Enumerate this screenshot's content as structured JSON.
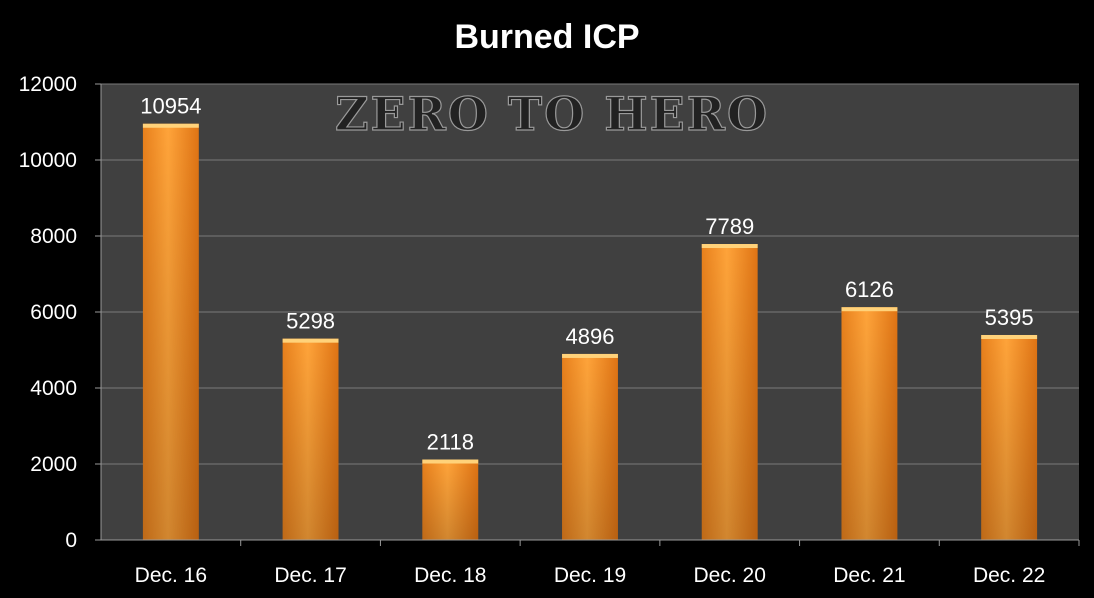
{
  "chart_data": {
    "type": "bar",
    "title": "Burned ICP",
    "annotation": "ZERO TO HERO",
    "categories": [
      "Dec. 16",
      "Dec. 17",
      "Dec. 18",
      "Dec. 19",
      "Dec. 20",
      "Dec. 21",
      "Dec. 22"
    ],
    "values": [
      10954,
      5298,
      2118,
      4896,
      7789,
      6126,
      5395
    ],
    "data_labels": [
      "10954",
      "5298",
      "2118",
      "4896",
      "7789",
      "6126",
      "5395"
    ],
    "y_ticks": [
      "0",
      "2000",
      "4000",
      "6000",
      "8000",
      "10000",
      "12000"
    ],
    "ylim": [
      0,
      12000
    ],
    "grid": true,
    "legend": "none",
    "colors": {
      "background": "#000000",
      "plot_area": "#404040",
      "gridline": "#7a7a7a",
      "bar_light": "#ffa235",
      "bar_dark": "#e57c1a",
      "text": "#ffffff"
    }
  }
}
